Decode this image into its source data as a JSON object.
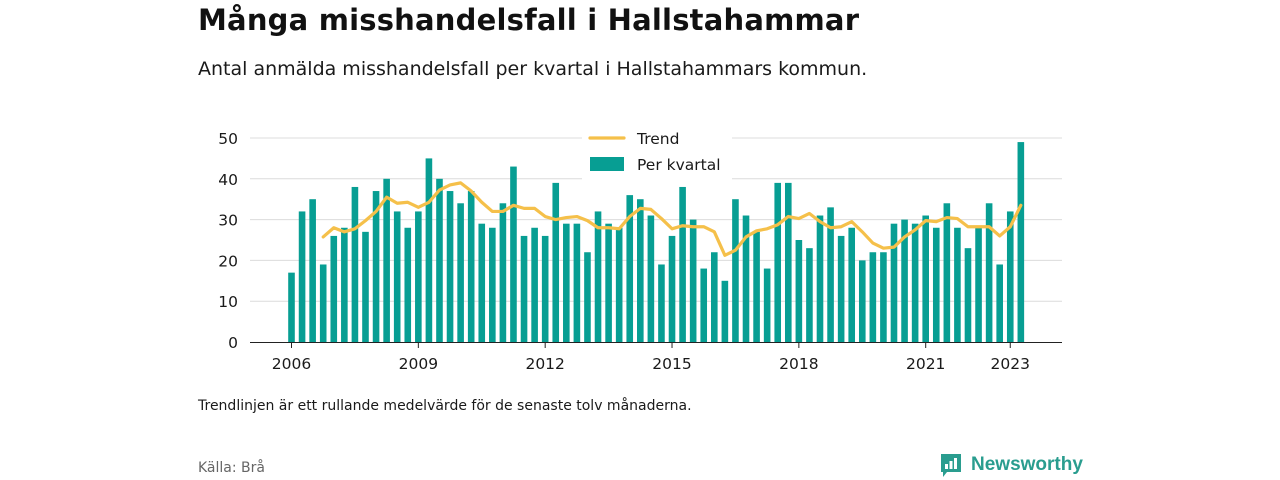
{
  "header": {
    "title": "Många misshandelsfall i Hallstahammar",
    "subtitle": "Antal anmälda misshandelsfall per kvartal i Hallstahammars kommun."
  },
  "footer": {
    "note": "Trendlinjen är ett rullande medelvärde för de senaste tolv månaderna.",
    "source": "Källa: Brå",
    "brand": "Newsworthy"
  },
  "colors": {
    "bars": "#079e93",
    "trend": "#f5c04a",
    "brand": "#2a9d8f"
  },
  "chart_data": {
    "type": "bar",
    "title": "",
    "xlabel": "",
    "ylabel": "",
    "ylim": [
      0,
      50
    ],
    "yticks": [
      0,
      10,
      20,
      30,
      40,
      50
    ],
    "xticks": [
      "2006",
      "2009",
      "2012",
      "2015",
      "2018",
      "2021",
      "2023"
    ],
    "grid": true,
    "legend_position": "top",
    "legend": [
      "Trend",
      "Per kvartal"
    ],
    "categories": [
      "2006 Q1",
      "2006 Q2",
      "2006 Q3",
      "2006 Q4",
      "2007 Q1",
      "2007 Q2",
      "2007 Q3",
      "2007 Q4",
      "2008 Q1",
      "2008 Q2",
      "2008 Q3",
      "2008 Q4",
      "2009 Q1",
      "2009 Q2",
      "2009 Q3",
      "2009 Q4",
      "2010 Q1",
      "2010 Q2",
      "2010 Q3",
      "2010 Q4",
      "2011 Q1",
      "2011 Q2",
      "2011 Q3",
      "2011 Q4",
      "2012 Q1",
      "2012 Q2",
      "2012 Q3",
      "2012 Q4",
      "2013 Q1",
      "2013 Q2",
      "2013 Q3",
      "2013 Q4",
      "2014 Q1",
      "2014 Q2",
      "2014 Q3",
      "2014 Q4",
      "2015 Q1",
      "2015 Q2",
      "2015 Q3",
      "2015 Q4",
      "2016 Q1",
      "2016 Q2",
      "2016 Q3",
      "2016 Q4",
      "2017 Q1",
      "2017 Q2",
      "2017 Q3",
      "2017 Q4",
      "2018 Q1",
      "2018 Q2",
      "2018 Q3",
      "2018 Q4",
      "2019 Q1",
      "2019 Q2",
      "2019 Q3",
      "2019 Q4",
      "2020 Q1",
      "2020 Q2",
      "2020 Q3",
      "2020 Q4",
      "2021 Q1",
      "2021 Q2",
      "2021 Q3",
      "2021 Q4",
      "2022 Q1",
      "2022 Q2",
      "2022 Q3",
      "2022 Q4",
      "2023 Q1",
      "2023 Q2"
    ],
    "series": [
      {
        "name": "Per kvartal",
        "type": "bar",
        "values": [
          17,
          32,
          35,
          19,
          26,
          28,
          38,
          27,
          37,
          40,
          32,
          28,
          32,
          45,
          40,
          37,
          34,
          37,
          29,
          28,
          34,
          43,
          26,
          28,
          26,
          39,
          29,
          29,
          22,
          32,
          29,
          28,
          36,
          35,
          31,
          19,
          26,
          38,
          30,
          18,
          22,
          15,
          35,
          31,
          27,
          18,
          39,
          39,
          25,
          23,
          31,
          33,
          26,
          28,
          20,
          22,
          22,
          29,
          30,
          29,
          31,
          28,
          34,
          28,
          23,
          28,
          34,
          19,
          32,
          49
        ]
      },
      {
        "name": "Trend",
        "type": "line",
        "values": [
          null,
          null,
          null,
          25.75,
          28,
          27,
          27.75,
          29.75,
          32,
          35.5,
          34,
          34.25,
          33,
          34.25,
          37.25,
          38.5,
          39,
          37,
          34.25,
          32,
          32,
          33.5,
          32.75,
          32.75,
          30.75,
          30,
          30.5,
          30.75,
          29.75,
          28,
          28,
          27.75,
          30.75,
          32.75,
          32.5,
          30.25,
          27.75,
          28.5,
          28.25,
          28.25,
          27,
          21.25,
          22.5,
          25.75,
          27.25,
          27.75,
          28.75,
          30.75,
          30.25,
          31.5,
          29.5,
          28,
          28.25,
          29.5,
          27,
          24.25,
          23,
          23.25,
          25.75,
          27.5,
          29.75,
          29.5,
          30.5,
          30.25,
          28.25,
          28.25,
          28.25,
          26,
          28.25,
          33.5
        ]
      }
    ]
  }
}
